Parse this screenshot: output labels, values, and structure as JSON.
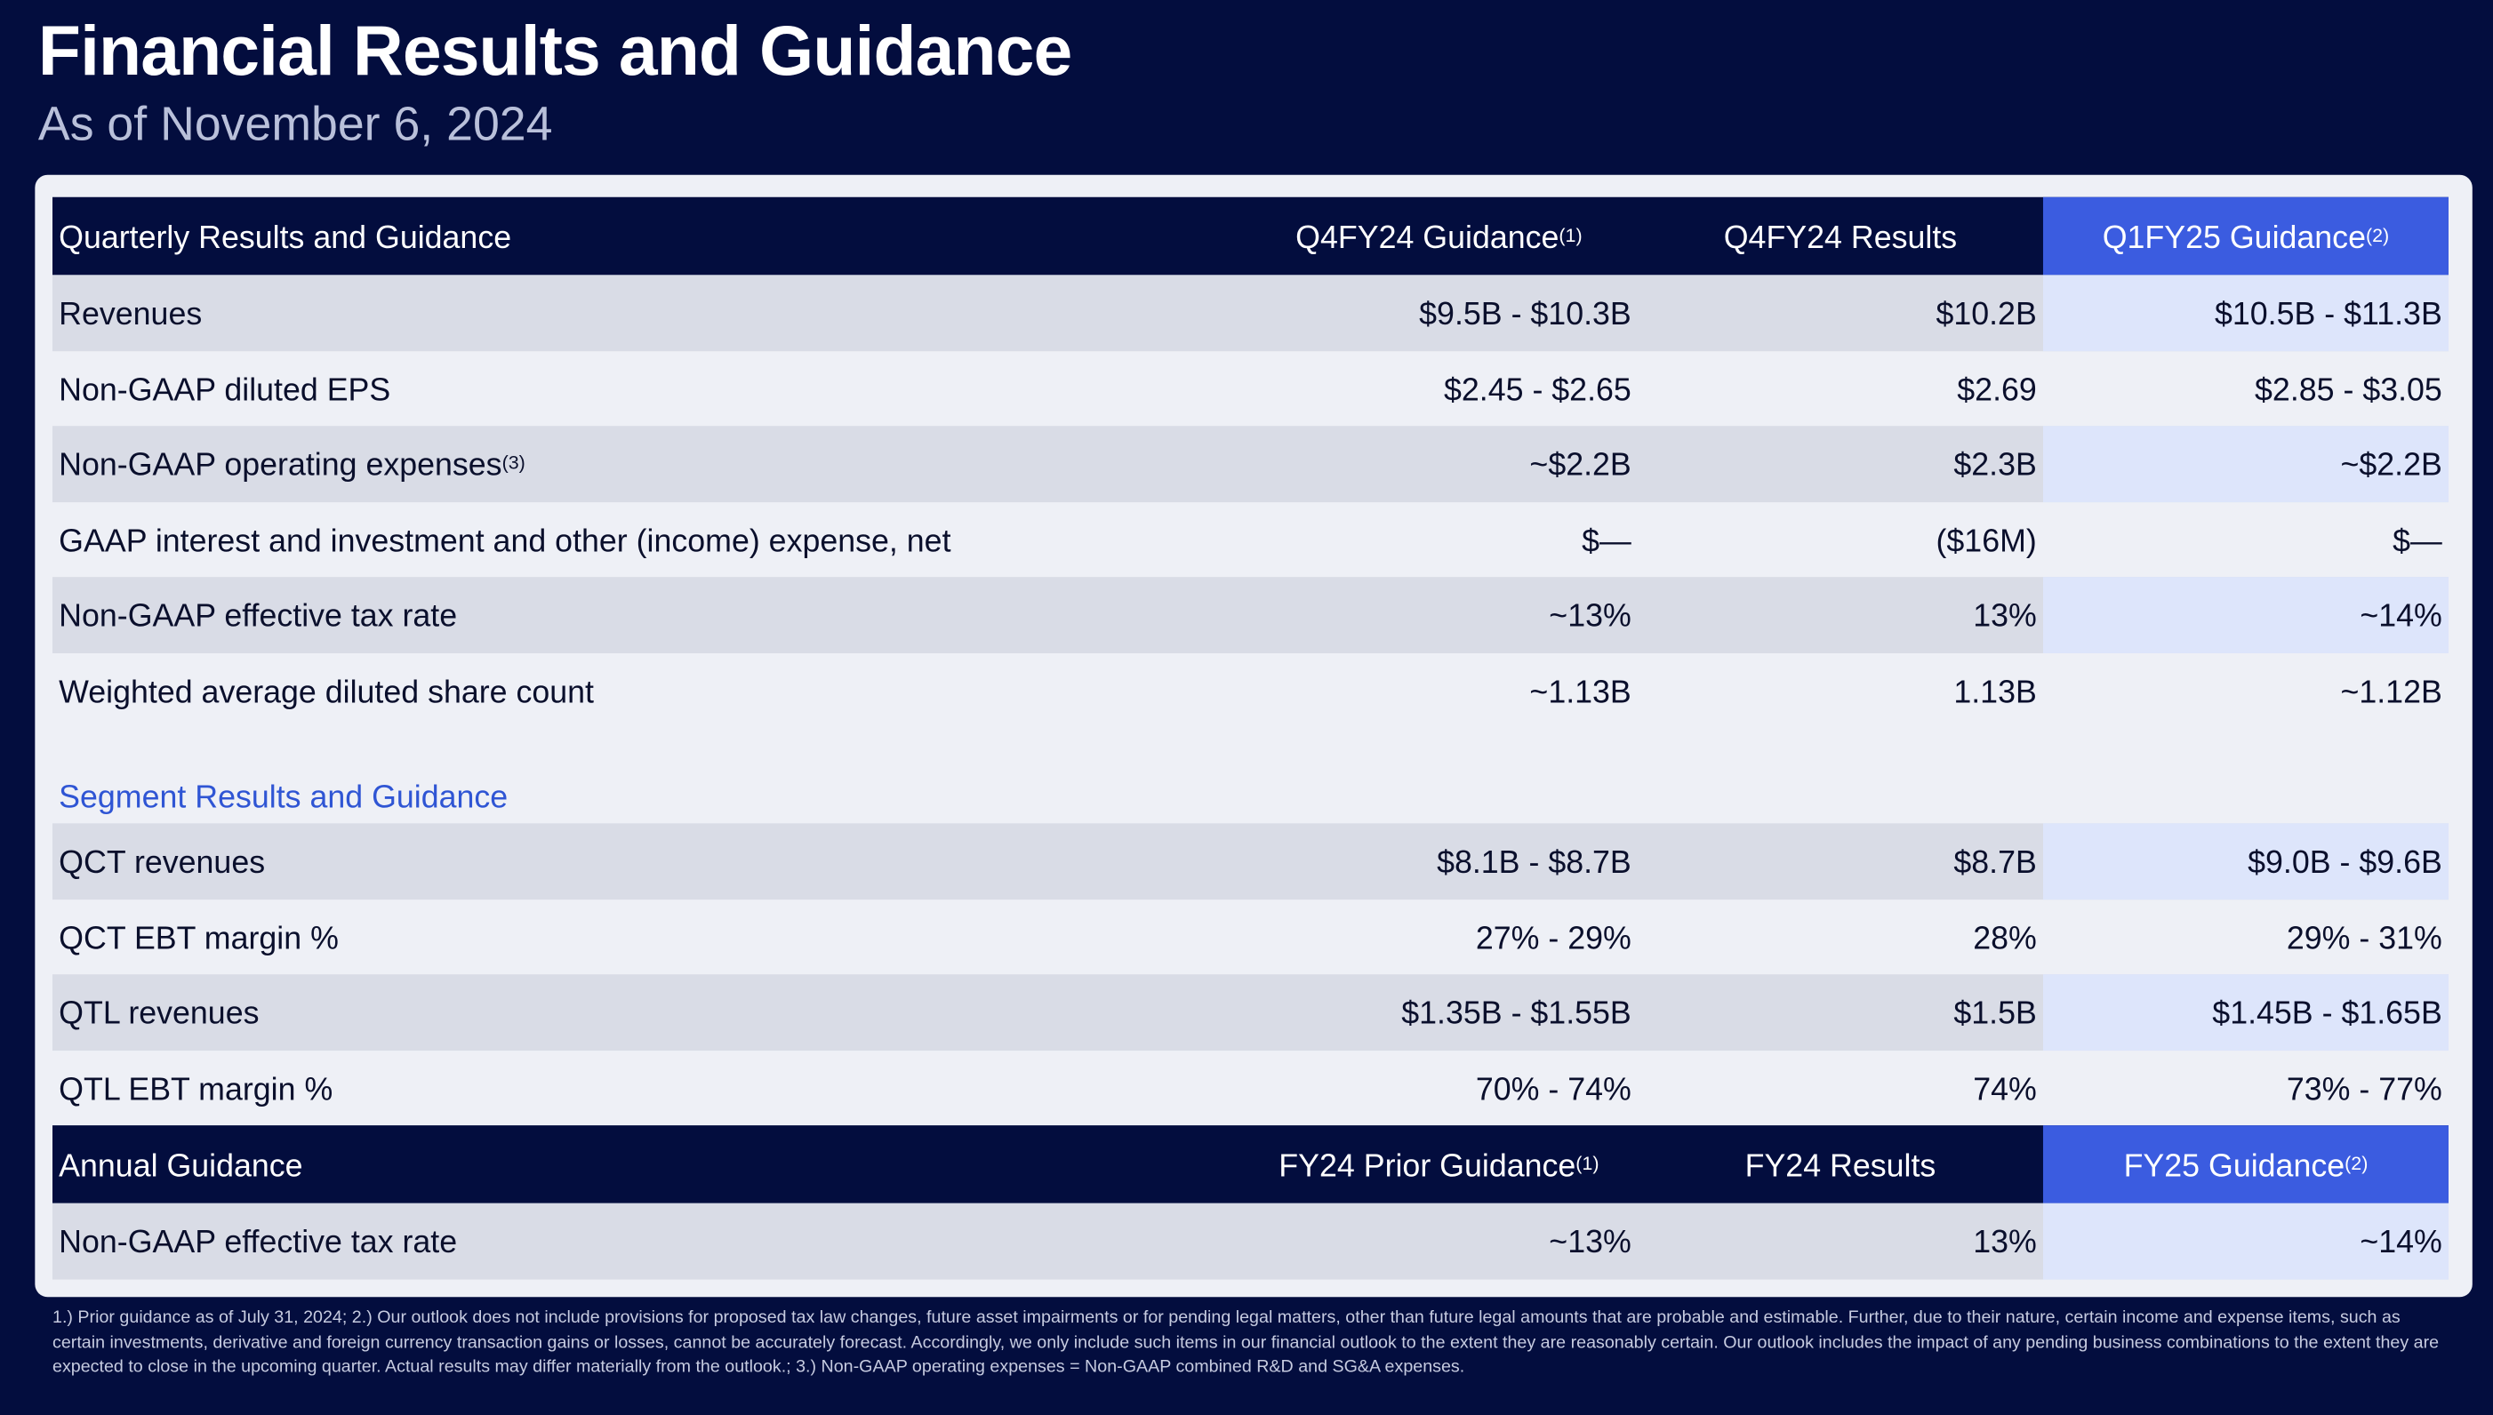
{
  "header": {
    "title": "Financial Results and Guidance",
    "subtitle": "As of November 6, 2024"
  },
  "table": {
    "quarterly_header": [
      {
        "text": "Quarterly Results and Guidance"
      },
      {
        "text": "Q4FY24 Guidance",
        "note": "(1)"
      },
      {
        "text": "Q4FY24 Results"
      },
      {
        "text": "Q1FY25 Guidance",
        "note": "(2)"
      }
    ],
    "quarterly_rows": [
      {
        "label": "Revenues",
        "values": [
          "$9.5B - $10.3B",
          "$10.2B",
          "$10.5B - $11.3B"
        ]
      },
      {
        "label": "Non-GAAP diluted EPS",
        "values": [
          "$2.45 - $2.65",
          "$2.69",
          "$2.85 - $3.05"
        ]
      },
      {
        "label": "Non-GAAP operating expenses",
        "note": "(3)",
        "values": [
          "~$2.2B",
          "$2.3B",
          "~$2.2B"
        ]
      },
      {
        "label": "GAAP interest and investment and other (income) expense, net",
        "values": [
          "$—",
          "($16M)",
          "$—"
        ]
      },
      {
        "label": "Non-GAAP effective tax rate",
        "values": [
          "~13%",
          "13%",
          "~14%"
        ]
      },
      {
        "label": "Weighted average diluted share count",
        "values": [
          "~1.13B",
          "1.13B",
          "~1.12B"
        ]
      }
    ],
    "segment_title": "Segment Results and Guidance",
    "segment_rows": [
      {
        "label": "QCT revenues",
        "values": [
          "$8.1B - $8.7B",
          "$8.7B",
          "$9.0B - $9.6B"
        ]
      },
      {
        "label": "QCT EBT margin %",
        "values": [
          "27% - 29%",
          "28%",
          "29% - 31%"
        ]
      },
      {
        "label": "QTL revenues",
        "values": [
          "$1.35B - $1.55B",
          "$1.5B",
          "$1.45B - $1.65B"
        ]
      },
      {
        "label": "QTL EBT margin %",
        "values": [
          "70% - 74%",
          "74%",
          "73% - 77%"
        ]
      }
    ],
    "annual_header": [
      {
        "text": "Annual Guidance"
      },
      {
        "text": "FY24 Prior Guidance",
        "note": "(1)"
      },
      {
        "text": "FY24 Results"
      },
      {
        "text": "FY25 Guidance",
        "note": "(2)"
      }
    ],
    "annual_rows": [
      {
        "label": "Non-GAAP effective tax rate",
        "values": [
          "~13%",
          "13%",
          "~14%"
        ]
      }
    ]
  },
  "footnote": "1.) Prior guidance as of July 31, 2024; 2.) Our outlook does not include provisions for proposed tax law changes, future asset impairments or for pending legal matters, other than future legal amounts that are probable and estimable. Further, due to their nature, certain income and expense items, such as certain investments, derivative and foreign currency transaction gains or losses, cannot be accurately forecast. Accordingly, we only include such items in our financial outlook to the extent they are reasonably certain. Our outlook includes the impact of any pending business combinations to the extent they are expected to close in the upcoming quarter. Actual results may differ materially from the outlook.; 3.) Non-GAAP operating expenses = Non-GAAP combined R&D and SG&A expenses."
}
